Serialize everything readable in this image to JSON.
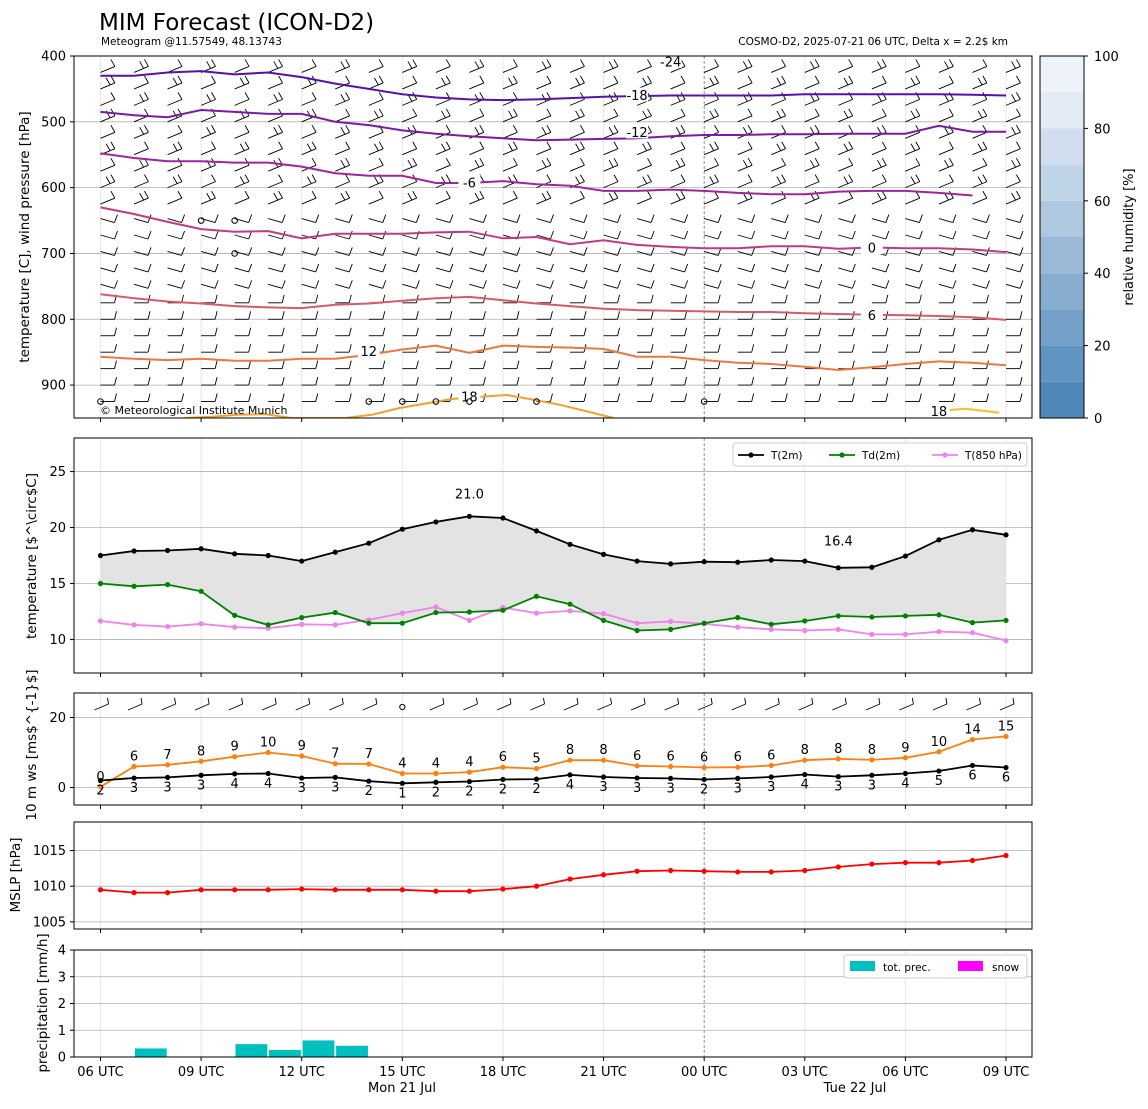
{
  "header": {
    "title": "MIM Forecast (ICON-D2)",
    "subtitle_left": "Meteogram @11.57549, 48.13743",
    "subtitle_right": "COSMO-D2, 2025-07-21 06 UTC, Delta x = 2.2$ km",
    "copyright": "© Meteorological Institute Munich"
  },
  "time_axis": {
    "hours": [
      "06 UTC",
      "09 UTC",
      "12 UTC",
      "15 UTC",
      "18 UTC",
      "21 UTC",
      "00 UTC",
      "03 UTC",
      "06 UTC",
      "09 UTC"
    ],
    "day_labels": [
      "Mon 21 Jul",
      "Tue 22 Jul"
    ]
  },
  "colors": {
    "t2m": "#000000",
    "td2m": "#008000",
    "t850": "#ee82ee",
    "wind_speed": "#ff7f0e",
    "gust_labels": "#ff7f0e",
    "mslp": "#ff0000",
    "precip": "#00bfbf",
    "snow": "#ff00ff",
    "tmax": "#ff0000",
    "tmin": "#0000ff"
  },
  "chart_data": [
    {
      "type": "line",
      "name": "upper-air",
      "ylabel": "temperature [C], wind pressure [hPa]",
      "ylim": [
        950,
        400
      ],
      "yticks": [
        "400",
        "500",
        "600",
        "700",
        "800",
        "900"
      ],
      "colorbar": {
        "label": "relative humidity [%]",
        "ticks": [
          "0",
          "20",
          "40",
          "60",
          "80",
          "100"
        ],
        "range": [
          0,
          100
        ]
      },
      "isotherms": [
        {
          "label": "-24",
          "color": "#5a0fa8",
          "values": [
            430,
            430,
            425,
            423,
            428,
            425,
            432,
            442,
            450,
            458,
            463,
            466,
            467,
            466,
            464,
            462,
            461,
            460,
            460,
            460,
            460,
            458,
            458,
            458,
            458,
            458,
            459,
            460
          ]
        },
        {
          "label": "-18",
          "color": "#7d18a8",
          "values": [
            485,
            490,
            493,
            482,
            485,
            488,
            488,
            500,
            505,
            513,
            518,
            522,
            525,
            528,
            527,
            526,
            525,
            522,
            520,
            520,
            519,
            519,
            518,
            518,
            518,
            506,
            515,
            515
          ]
        },
        {
          "label": "-12",
          "color": "#a0249c",
          "values": [
            548,
            555,
            560,
            560,
            562,
            562,
            568,
            578,
            582,
            582,
            593,
            593,
            590,
            595,
            597,
            605,
            605,
            603,
            605,
            608,
            610,
            610,
            606,
            605,
            605,
            608,
            612
          ]
        },
        {
          "label": "-6",
          "color": "#c23a80",
          "values": [
            630,
            640,
            652,
            663,
            667,
            666,
            677,
            670,
            670,
            670,
            668,
            667,
            677,
            675,
            686,
            680,
            687,
            690,
            692,
            692,
            689,
            689,
            693,
            691,
            692,
            692,
            694,
            698
          ]
        },
        {
          "label": "0",
          "color": "#d85a68",
          "values": [
            762,
            768,
            773,
            776,
            780,
            782,
            783,
            778,
            776,
            772,
            768,
            766,
            771,
            776,
            780,
            784,
            786,
            787,
            788,
            789,
            789,
            791,
            792,
            793,
            794,
            795,
            797,
            801
          ]
        },
        {
          "label": "6",
          "color": "#ea7840",
          "values": [
            857,
            860,
            862,
            860,
            863,
            863,
            860,
            860,
            854,
            846,
            840,
            851,
            840,
            842,
            843,
            845,
            857,
            857,
            862,
            866,
            868,
            872,
            877,
            873,
            868,
            864,
            866,
            870
          ]
        },
        {
          "label": "12",
          "color": "#f2a030",
          "values": [
            950,
            948,
            945,
            944,
            950,
            950,
            950,
            945,
            935,
            928,
            921,
            918,
            915,
            922,
            930,
            940,
            950
          ]
        },
        {
          "label": "18",
          "color": "#f5c024",
          "values": [
            940,
            936,
            942
          ]
        }
      ],
      "contour_labels": [
        "-24",
        "-18",
        "-12",
        "-6",
        "0",
        "6",
        "12",
        "18",
        "18"
      ]
    },
    {
      "type": "line",
      "name": "surface-temperature",
      "ylabel": "temperature [$^\\circ$C]",
      "ylim": [
        7,
        28
      ],
      "yticks": [
        "10",
        "15",
        "20",
        "25"
      ],
      "legend": {
        "placement": "top-right",
        "entries": [
          "T(2m)",
          "Td(2m)",
          "T(850 hPa)"
        ]
      },
      "annotations": {
        "tmax": "21.0",
        "tmin": "16.4"
      },
      "series": [
        {
          "name": "T(2m)",
          "values": [
            17.5,
            17.9,
            17.95,
            18.1,
            17.65,
            17.5,
            17.0,
            17.8,
            18.6,
            19.85,
            20.5,
            21.0,
            20.85,
            19.7,
            18.5,
            17.6,
            17.0,
            16.75,
            16.95,
            16.9,
            17.1,
            17.0,
            16.4,
            16.45,
            17.45,
            18.9,
            19.8,
            19.35
          ]
        },
        {
          "name": "Td(2m)",
          "values": [
            15.0,
            14.75,
            14.9,
            14.3,
            12.15,
            11.3,
            11.95,
            12.4,
            11.45,
            11.45,
            12.4,
            12.45,
            12.6,
            13.85,
            13.15,
            11.7,
            10.8,
            10.9,
            11.45,
            11.95,
            11.35,
            11.65,
            12.1,
            12.0,
            12.1,
            12.2,
            11.5,
            11.7
          ]
        },
        {
          "name": "T(850 hPa)",
          "values": [
            11.65,
            11.3,
            11.15,
            11.4,
            11.1,
            11.0,
            11.35,
            11.3,
            11.75,
            12.35,
            12.9,
            11.7,
            12.85,
            12.35,
            12.55,
            12.3,
            11.45,
            11.6,
            11.4,
            11.1,
            10.9,
            10.8,
            10.9,
            10.45,
            10.45,
            10.7,
            10.6,
            9.9
          ]
        }
      ]
    },
    {
      "type": "line",
      "name": "wind",
      "ylabel": "10 m ws [ms$^{-1}$]",
      "ylim": [
        -5,
        27
      ],
      "yticks": [
        "0",
        "20"
      ],
      "series": [
        {
          "name": "gust",
          "values": [
            0.2,
            6.0,
            6.5,
            7.5,
            8.8,
            10.0,
            9.0,
            6.8,
            6.7,
            4.0,
            4.0,
            4.4,
            5.8,
            5.4,
            7.8,
            7.8,
            6.2,
            6.0,
            5.7,
            5.8,
            6.3,
            7.8,
            8.2,
            7.9,
            8.5,
            10.2,
            13.7,
            14.6
          ]
        },
        {
          "name": "mean",
          "values": [
            2.0,
            2.7,
            2.9,
            3.5,
            3.9,
            4.0,
            2.7,
            2.9,
            1.8,
            1.2,
            1.5,
            1.7,
            2.3,
            2.4,
            3.6,
            3.0,
            2.7,
            2.6,
            2.3,
            2.6,
            3.0,
            3.7,
            3.1,
            3.5,
            4.0,
            4.7,
            6.3,
            5.7
          ]
        }
      ],
      "gust_labels": [
        "0",
        "6",
        "7",
        "8",
        "9",
        "10",
        "9",
        "7",
        "7",
        "4",
        "4",
        "4",
        "6",
        "5",
        "8",
        "8",
        "6",
        "6",
        "6",
        "6",
        "6",
        "8",
        "8",
        "8",
        "9",
        "10",
        "14",
        "15"
      ],
      "mean_labels": [
        "2",
        "3",
        "3",
        "3",
        "4",
        "4",
        "3",
        "3",
        "2",
        "1",
        "2",
        "2",
        "2",
        "2",
        "4",
        "3",
        "3",
        "3",
        "2",
        "3",
        "3",
        "4",
        "3",
        "3",
        "4",
        "5",
        "6",
        "6"
      ]
    },
    {
      "type": "line",
      "name": "mslp",
      "ylabel": "MSLP [hPa]",
      "ylim": [
        1004,
        1019
      ],
      "yticks": [
        "1005",
        "1010",
        "1015"
      ],
      "series": [
        {
          "name": "MSLP",
          "values": [
            1009.5,
            1009.1,
            1009.1,
            1009.5,
            1009.5,
            1009.5,
            1009.6,
            1009.5,
            1009.5,
            1009.5,
            1009.3,
            1009.3,
            1009.6,
            1010.0,
            1011.0,
            1011.6,
            1012.1,
            1012.2,
            1012.1,
            1012.0,
            1012.0,
            1012.2,
            1012.7,
            1013.1,
            1013.3,
            1013.3,
            1013.6,
            1014.3
          ]
        }
      ]
    },
    {
      "type": "bar",
      "name": "precipitation",
      "ylabel": "precipitation [mm/h]",
      "ylim": [
        0,
        4
      ],
      "yticks": [
        "0",
        "1",
        "2",
        "3",
        "4"
      ],
      "legend": {
        "placement": "top-right",
        "entries": [
          "tot. prec.",
          "snow"
        ]
      },
      "series": [
        {
          "name": "tot. prec.",
          "values": [
            0,
            0.32,
            0.02,
            0.02,
            0.48,
            0.26,
            0.62,
            0.42,
            0.02,
            0,
            0,
            0,
            0,
            0,
            0,
            0,
            0,
            0,
            0.02,
            0,
            0.02,
            0,
            0,
            0,
            0,
            0,
            0,
            0
          ]
        },
        {
          "name": "snow",
          "values": [
            0,
            0,
            0,
            0,
            0,
            0,
            0,
            0,
            0,
            0,
            0,
            0,
            0,
            0,
            0,
            0,
            0,
            0,
            0,
            0,
            0,
            0,
            0,
            0,
            0,
            0,
            0,
            0
          ]
        }
      ]
    }
  ]
}
